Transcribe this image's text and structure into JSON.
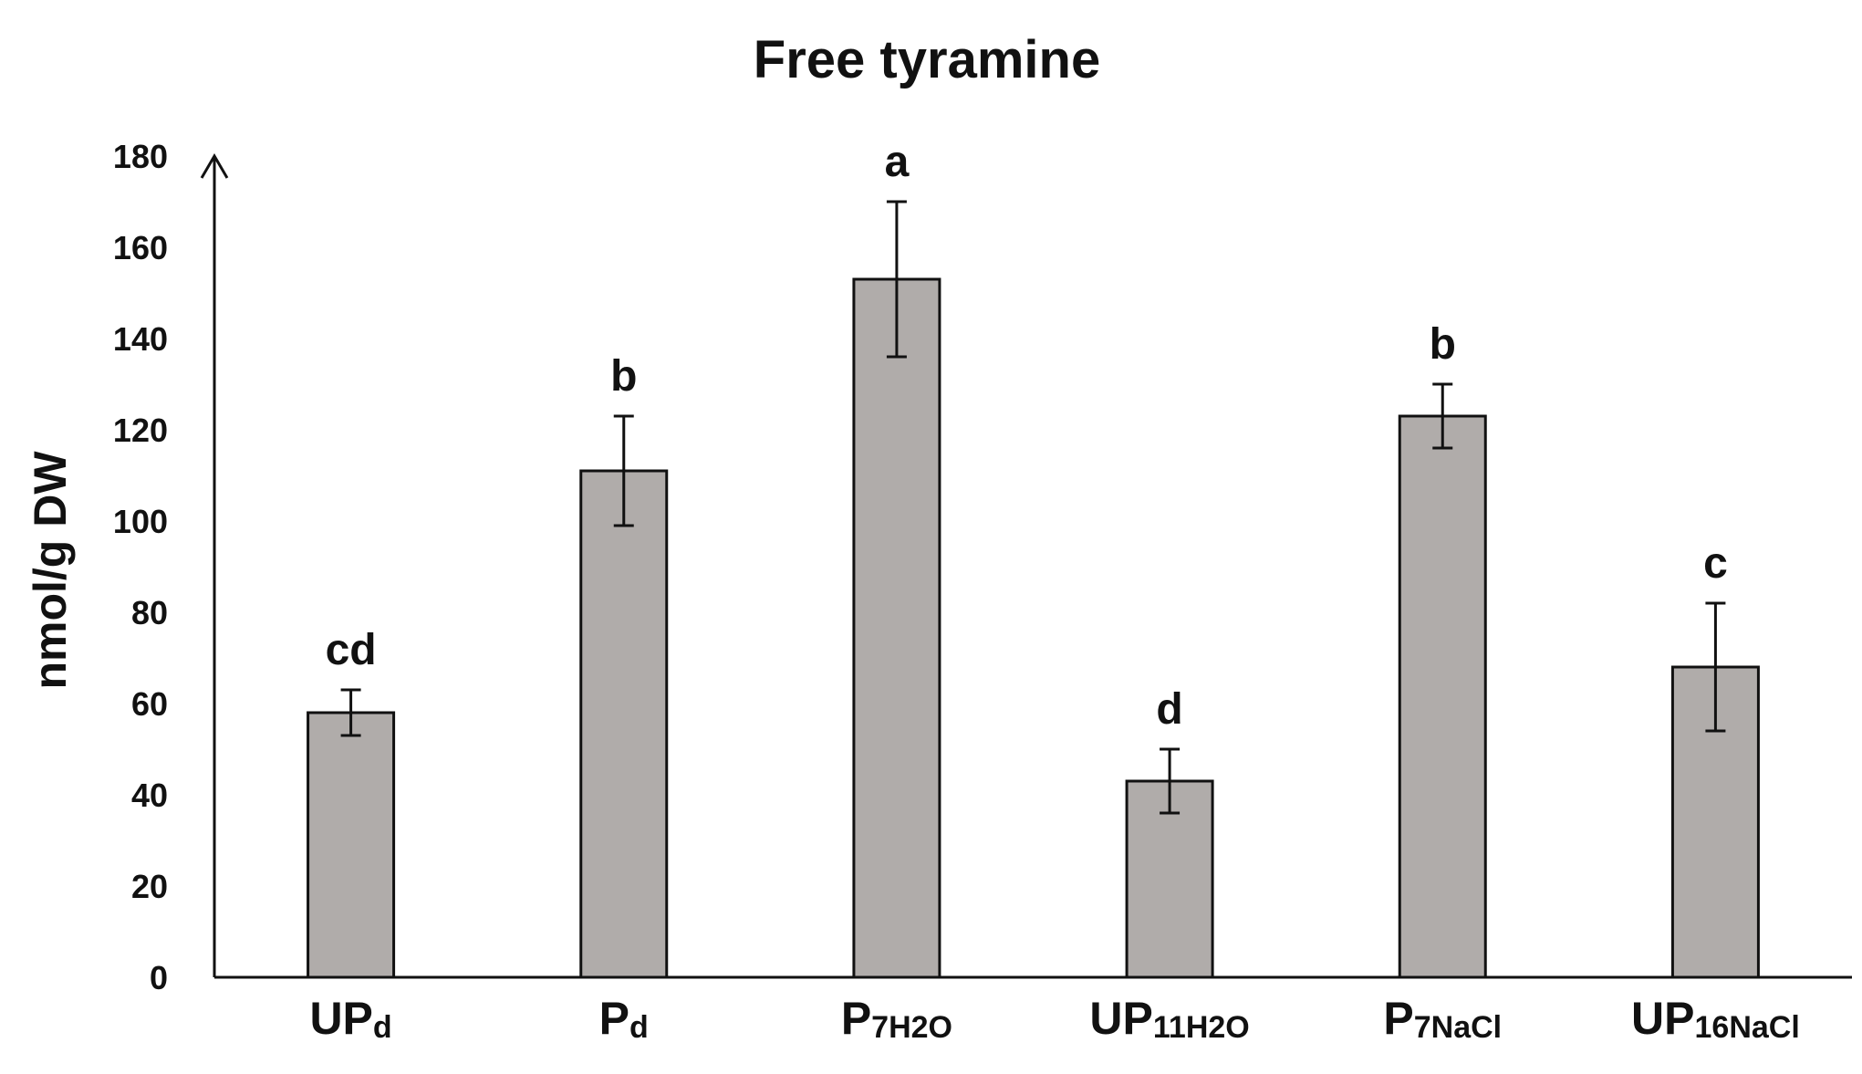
{
  "chart_data": {
    "type": "bar",
    "title": "Free tyramine",
    "ylabel": "nmol/g DW",
    "xlabel": "",
    "ylim": [
      0,
      180
    ],
    "yticks": [
      0,
      20,
      40,
      60,
      80,
      100,
      120,
      140,
      160,
      180
    ],
    "grid": false,
    "bar_color": "#b0acaa",
    "categories": [
      {
        "main": "UP",
        "sub": "d"
      },
      {
        "main": "P",
        "sub": "d"
      },
      {
        "main": "P",
        "sub": "7H2O"
      },
      {
        "main": "UP",
        "sub": "11H2O"
      },
      {
        "main": "P",
        "sub": "7NaCl"
      },
      {
        "main": "UP",
        "sub": "16NaCl"
      }
    ],
    "values": [
      58,
      111,
      153,
      43,
      123,
      68
    ],
    "errors": [
      5,
      12,
      17,
      7,
      7,
      14
    ],
    "significance_letters": [
      "cd",
      "b",
      "a",
      "d",
      "b",
      "c"
    ]
  }
}
